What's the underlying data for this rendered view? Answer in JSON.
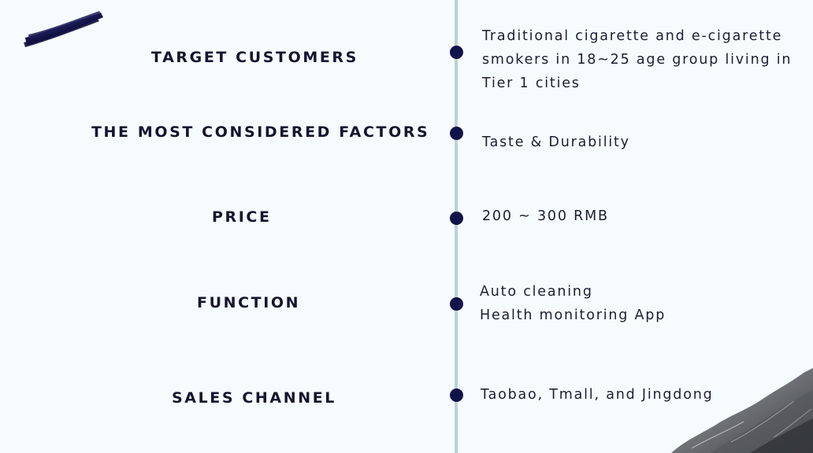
{
  "timeline": [
    {
      "label": "TARGET CUSTOMERS",
      "lines": [
        "Traditional cigarette and e-cigarette",
        "smokers in 18~25 age group living in",
        "Tier 1 cities"
      ]
    },
    {
      "label": "THE MOST CONSIDERED FACTORS",
      "lines": [
        "Taste & Durability"
      ]
    },
    {
      "label": "PRICE",
      "lines": [
        "200 ~ 300 RMB"
      ]
    },
    {
      "label": "FUNCTION",
      "lines": [
        "Auto cleaning",
        "Health monitoring App"
      ]
    },
    {
      "label": "SALES CHANNEL",
      "lines": [
        "Taobao, Tmall, and Jingdong"
      ]
    }
  ],
  "colors": {
    "background": "#f6fbfe",
    "accent": "#12124a",
    "line": "#b7d2d9",
    "text": "#14152e"
  },
  "decorations": {
    "brush_stroke": "brush-stroke-decoration",
    "rock": "rock-texture-decoration"
  }
}
